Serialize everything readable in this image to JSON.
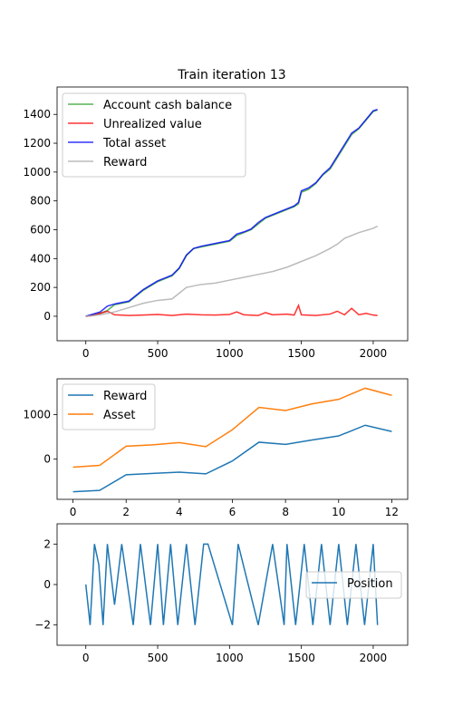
{
  "chart_data": [
    {
      "type": "line",
      "title": "Train iteration 13",
      "xlabel": "",
      "ylabel": "",
      "xlim": [
        -200,
        2240
      ],
      "ylim": [
        -170,
        1590
      ],
      "xticks": [
        0,
        500,
        1000,
        1500,
        2000
      ],
      "yticks": [
        0,
        200,
        400,
        600,
        800,
        1000,
        1200,
        1400
      ],
      "legend_position": "upper-left",
      "grid": false,
      "series": [
        {
          "name": "Account cash balance",
          "color": "#2ca02c",
          "x": [
            0,
            100,
            150,
            200,
            300,
            400,
            500,
            550,
            600,
            650,
            700,
            750,
            800,
            900,
            1000,
            1050,
            1100,
            1150,
            1200,
            1250,
            1300,
            1350,
            1400,
            1450,
            1480,
            1500,
            1550,
            1600,
            1650,
            1700,
            1750,
            1800,
            1850,
            1900,
            1950,
            2000,
            2030
          ],
          "y": [
            0,
            20,
            40,
            80,
            100,
            180,
            240,
            260,
            280,
            330,
            420,
            470,
            480,
            500,
            520,
            560,
            580,
            600,
            640,
            680,
            700,
            720,
            740,
            760,
            780,
            860,
            880,
            920,
            980,
            1020,
            1100,
            1180,
            1260,
            1300,
            1360,
            1420,
            1430
          ]
        },
        {
          "name": "Unrealized value",
          "color": "#ff0000",
          "x": [
            0,
            50,
            100,
            150,
            200,
            300,
            400,
            500,
            600,
            700,
            800,
            900,
            1000,
            1050,
            1100,
            1200,
            1250,
            1300,
            1400,
            1450,
            1480,
            1500,
            1600,
            1700,
            1750,
            1800,
            1850,
            1900,
            1950,
            2000,
            2030
          ],
          "y": [
            0,
            5,
            20,
            35,
            10,
            5,
            8,
            12,
            5,
            15,
            10,
            8,
            12,
            30,
            10,
            5,
            25,
            10,
            15,
            8,
            75,
            10,
            5,
            15,
            35,
            10,
            55,
            10,
            20,
            8,
            5
          ]
        },
        {
          "name": "Total asset",
          "color": "#0000ff",
          "x": [
            0,
            100,
            150,
            200,
            300,
            400,
            500,
            550,
            600,
            650,
            700,
            750,
            800,
            900,
            1000,
            1050,
            1100,
            1150,
            1200,
            1250,
            1300,
            1350,
            1400,
            1450,
            1480,
            1500,
            1550,
            1600,
            1650,
            1700,
            1750,
            1800,
            1850,
            1900,
            1950,
            2000,
            2030
          ],
          "y": [
            0,
            30,
            70,
            85,
            105,
            185,
            245,
            265,
            285,
            335,
            425,
            470,
            485,
            505,
            525,
            570,
            585,
            605,
            650,
            685,
            705,
            725,
            745,
            765,
            790,
            870,
            890,
            925,
            985,
            1030,
            1110,
            1190,
            1270,
            1305,
            1365,
            1425,
            1435
          ]
        },
        {
          "name": "Reward",
          "color": "#aaaaaa",
          "x": [
            0,
            100,
            200,
            300,
            400,
            500,
            600,
            650,
            700,
            800,
            900,
            1000,
            1100,
            1200,
            1300,
            1400,
            1500,
            1600,
            1700,
            1750,
            1800,
            1900,
            2000,
            2030
          ],
          "y": [
            0,
            10,
            30,
            60,
            90,
            110,
            120,
            160,
            200,
            220,
            230,
            250,
            270,
            290,
            310,
            340,
            380,
            420,
            470,
            500,
            540,
            580,
            610,
            625
          ]
        }
      ]
    },
    {
      "type": "line",
      "title": "",
      "xlabel": "",
      "ylabel": "",
      "xlim": [
        -0.6,
        12.6
      ],
      "ylim": [
        -900,
        1800
      ],
      "xticks": [
        0,
        2,
        4,
        6,
        8,
        10,
        12
      ],
      "yticks": [
        0,
        1000
      ],
      "legend_position": "upper-left",
      "grid": false,
      "series": [
        {
          "name": "Reward",
          "color": "#1f77b4",
          "x": [
            0,
            1,
            2,
            3,
            4,
            5,
            6,
            7,
            8,
            9,
            10,
            11,
            12
          ],
          "y": [
            -730,
            -700,
            -350,
            -320,
            -290,
            -330,
            -40,
            380,
            330,
            430,
            520,
            760,
            620
          ]
        },
        {
          "name": "Asset",
          "color": "#ff7f0e",
          "x": [
            0,
            1,
            2,
            3,
            4,
            5,
            6,
            7,
            8,
            9,
            10,
            11,
            12
          ],
          "y": [
            -180,
            -140,
            290,
            320,
            370,
            280,
            660,
            1160,
            1090,
            1240,
            1340,
            1590,
            1430
          ]
        }
      ]
    },
    {
      "type": "line",
      "title": "",
      "xlabel": "",
      "ylabel": "",
      "xlim": [
        -200,
        2240
      ],
      "ylim": [
        -3,
        3
      ],
      "xticks": [
        0,
        500,
        1000,
        1500,
        2000
      ],
      "yticks": [
        -2,
        0,
        2
      ],
      "legend_position": "center-right",
      "grid": false,
      "series": [
        {
          "name": "Position",
          "color": "#1f77b4",
          "x": [
            0,
            30,
            60,
            90,
            120,
            150,
            200,
            250,
            330,
            380,
            450,
            500,
            540,
            590,
            640,
            700,
            760,
            820,
            850,
            1020,
            1060,
            1200,
            1300,
            1380,
            1400,
            1460,
            1520,
            1580,
            1640,
            1700,
            1760,
            1820,
            1880,
            1940,
            2000,
            2030
          ],
          "y": [
            0,
            -2,
            2,
            1,
            -2,
            2,
            -1,
            2,
            -2,
            2,
            -2,
            2,
            -2,
            2,
            -2,
            2,
            -2,
            2,
            2,
            -2,
            2,
            -2,
            2,
            -2,
            2,
            -2,
            2,
            -2,
            2,
            -2,
            2,
            -2,
            2,
            -2,
            2,
            -2
          ]
        }
      ]
    }
  ]
}
